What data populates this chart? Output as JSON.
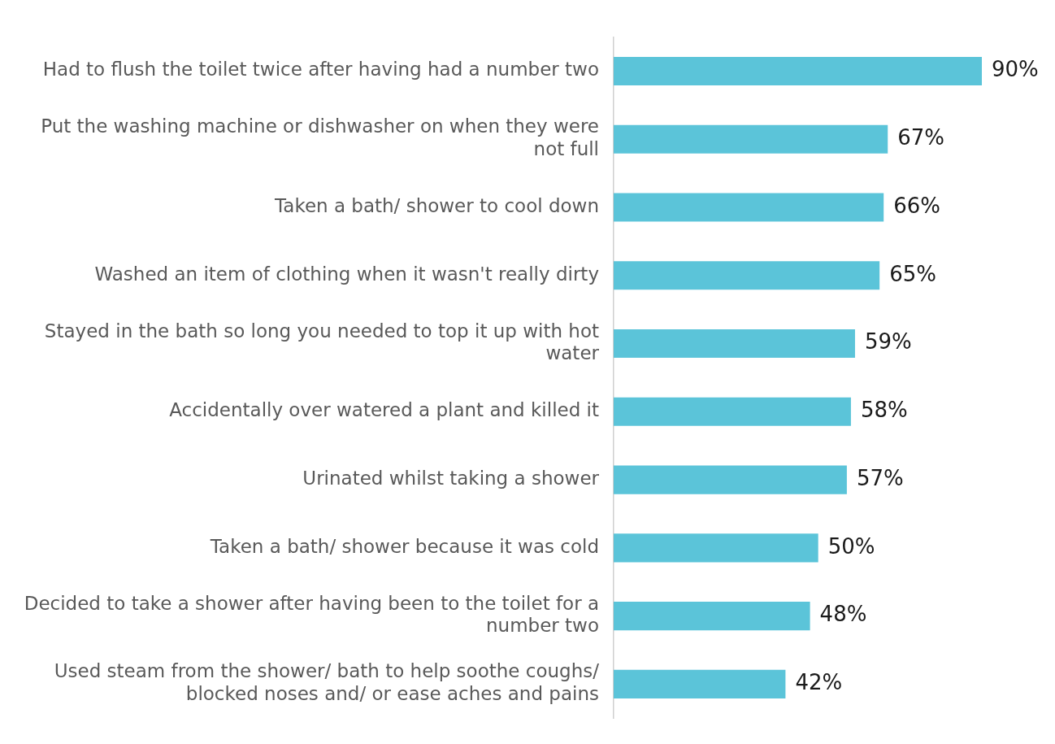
{
  "chart_data": {
    "type": "bar",
    "orientation": "horizontal",
    "categories": [
      "Had to flush the toilet twice after having had a number two",
      "Put the washing machine or dishwasher on when they were not full",
      "Taken a bath/ shower to cool down",
      "Washed an item of clothing when it wasn't really dirty",
      "Stayed in the bath so long you needed to top it up with hot water",
      "Accidentally over watered a plant and killed it",
      "Urinated whilst taking a shower",
      "Taken a bath/ shower because it was cold",
      "Decided to take a shower after having been to the toilet for a number two",
      "Used steam from the shower/ bath to help soothe coughs/ blocked noses and/ or ease aches and pains"
    ],
    "values": [
      90,
      67,
      66,
      65,
      59,
      58,
      57,
      50,
      48,
      42
    ],
    "value_labels": [
      "90%",
      "67%",
      "66%",
      "65%",
      "59%",
      "58%",
      "57%",
      "50%",
      "48%",
      "42%"
    ],
    "color": "#5bc4d9",
    "tick_labels": "y",
    "grid": false,
    "legend": false
  }
}
